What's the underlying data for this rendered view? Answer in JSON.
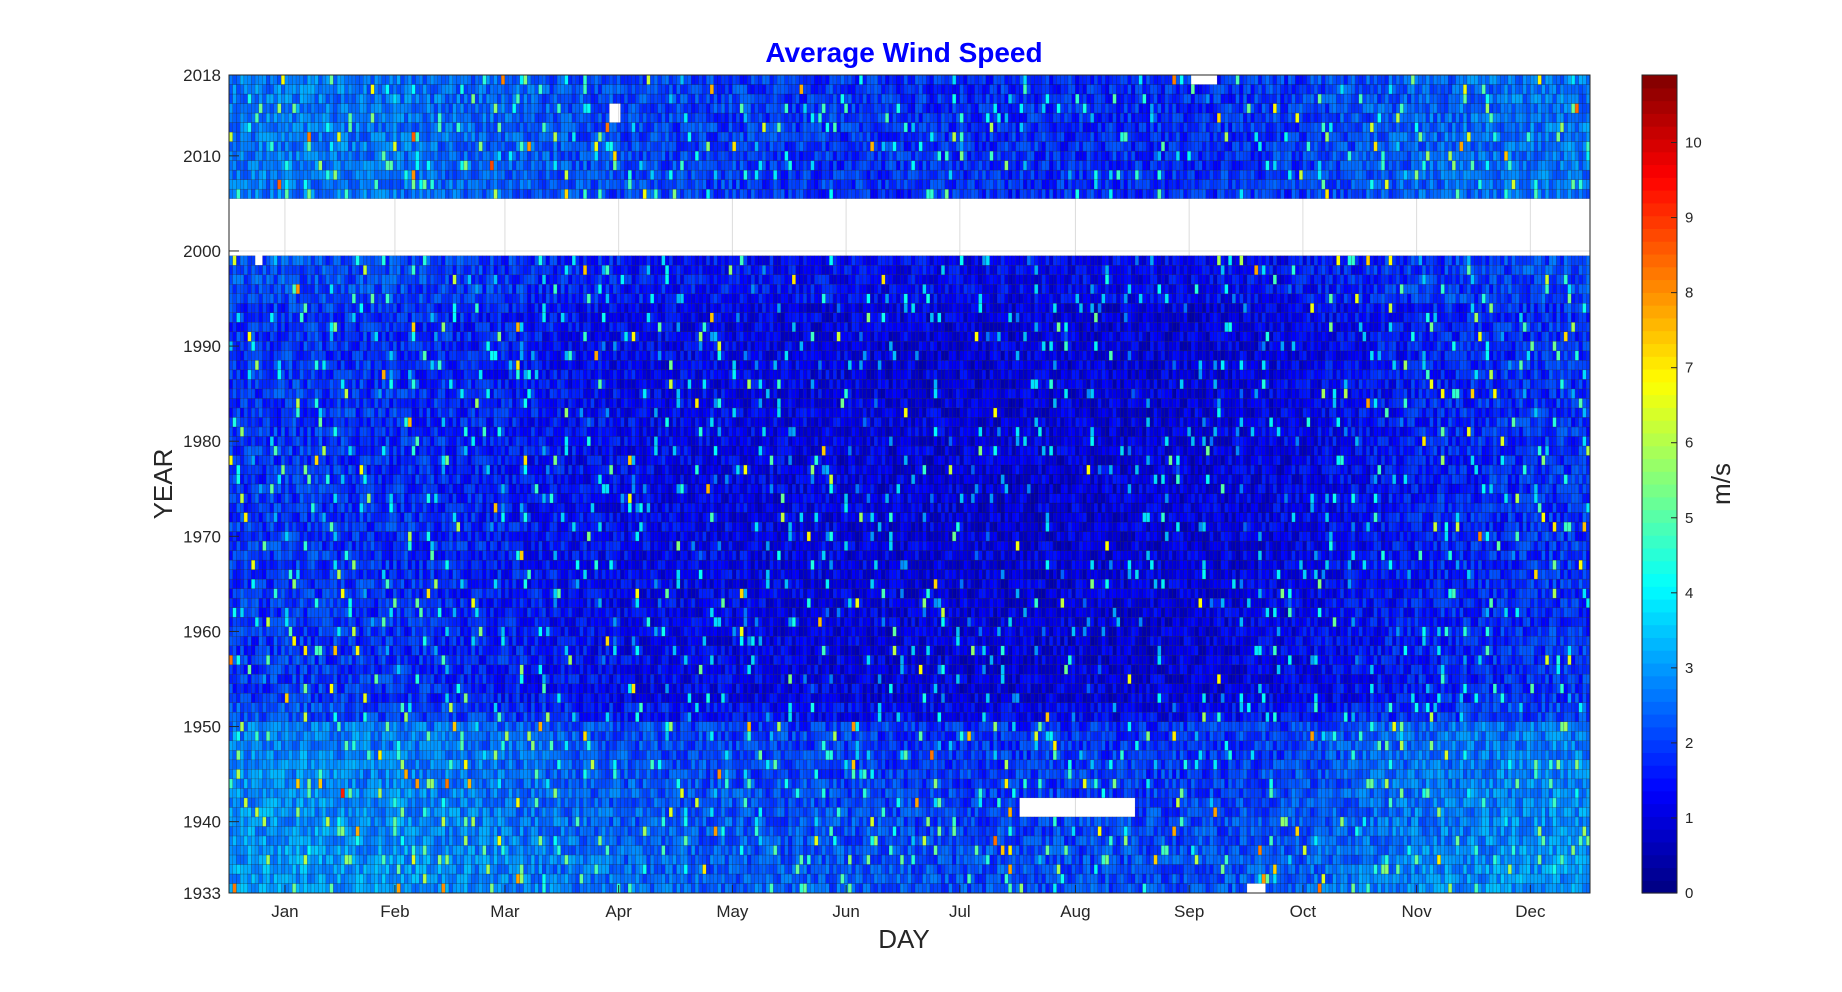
{
  "chart_data": {
    "type": "heatmap",
    "title": "Average Wind Speed",
    "xlabel": "DAY",
    "ylabel": "YEAR",
    "x_domain": {
      "first_day": 1,
      "last_day": 365
    },
    "y_domain": {
      "first_year": 1933,
      "last_year": 2018
    },
    "months": [
      "Jan",
      "Feb",
      "Mar",
      "Apr",
      "May",
      "Jun",
      "Jul",
      "Aug",
      "Sep",
      "Oct",
      "Nov",
      "Dec"
    ],
    "month_mid_days": [
      16,
      45.5,
      75,
      105.5,
      136,
      166.5,
      197,
      228,
      258.5,
      289,
      319.5,
      350
    ],
    "yticks": [
      1933,
      1940,
      1950,
      1960,
      1970,
      1980,
      1990,
      2000,
      2010,
      2018
    ],
    "missing_years": [
      2000,
      2001,
      2002,
      2003,
      2004,
      2005
    ],
    "missing_cells": [
      {
        "year_from": 1941,
        "year_to": 1942,
        "day_from": 213,
        "day_to": 243
      },
      {
        "year_from": 1933,
        "year_to": 1933,
        "day_from": 274,
        "day_to": 278
      },
      {
        "year_from": 2014,
        "year_to": 2015,
        "day_from": 103,
        "day_to": 105
      },
      {
        "year_from": 2018,
        "year_to": 2018,
        "day_from": 259,
        "day_to": 265
      },
      {
        "year_from": 1999,
        "year_to": 1999,
        "day_from": 8,
        "day_to": 9
      }
    ],
    "seasonal_profile": {
      "monthly_base_mps": [
        2.2,
        2.1,
        1.9,
        1.6,
        1.5,
        1.4,
        1.3,
        1.3,
        1.3,
        1.5,
        1.9,
        2.1
      ],
      "early_period_1933_1950_extra_mps": 0.9,
      "recent_period_2006_2018_extra_mps": 0.5,
      "min_mps": 0,
      "max_mps": 11
    },
    "colorbar": {
      "label": "m/s",
      "min": 0,
      "max": 10.9,
      "ticks": [
        0,
        1,
        2,
        3,
        4,
        5,
        6,
        7,
        8,
        9,
        10
      ],
      "colormap": "jet"
    },
    "grid": true
  }
}
